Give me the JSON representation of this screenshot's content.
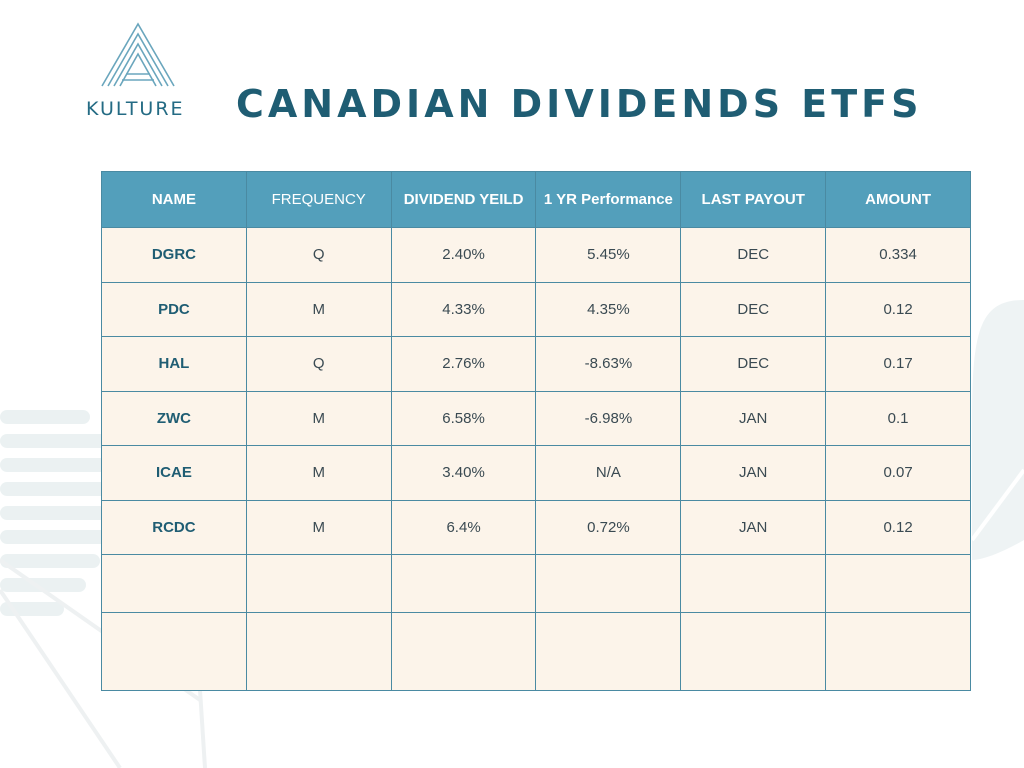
{
  "brand": {
    "name": "KULTURE",
    "accent": "#1f5d73",
    "header_fill": "#539fbb",
    "cell_fill": "#fcf4ea"
  },
  "title": "CANADIAN DIVIDENDS ETFS",
  "table": {
    "headers": [
      "NAME",
      "FREQUENCY",
      "DIVIDEND YEILD",
      "1 YR Performance",
      "LAST PAYOUT",
      "AMOUNT"
    ],
    "rows": [
      [
        "DGRC",
        "Q",
        "2.40%",
        "5.45%",
        "DEC",
        "0.334"
      ],
      [
        "PDC",
        "M",
        "4.33%",
        "4.35%",
        "DEC",
        "0.12"
      ],
      [
        "HAL",
        "Q",
        "2.76%",
        "-8.63%",
        "DEC",
        "0.17"
      ],
      [
        "ZWC",
        "M",
        "6.58%",
        "-6.98%",
        "JAN",
        "0.1"
      ],
      [
        "ICAE",
        "M",
        "3.40%",
        "N/A",
        "JAN",
        "0.07"
      ],
      [
        "RCDC",
        "M",
        "6.4%",
        "0.72%",
        "JAN",
        "0.12"
      ],
      [
        "",
        "",
        "",
        "",
        "",
        ""
      ],
      [
        "",
        "",
        "",
        "",
        "",
        ""
      ]
    ]
  }
}
